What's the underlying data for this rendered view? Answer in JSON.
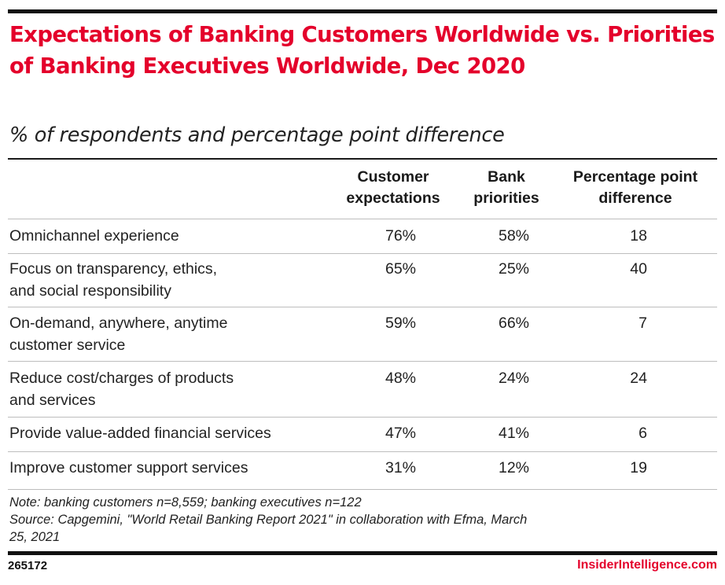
{
  "chart_data": {
    "type": "table",
    "title": "Expectations of Banking Customers Worldwide vs. Priorities of Banking Executives Worldwide, Dec 2020",
    "subtitle": "% of respondents and percentage point difference",
    "columns": [
      "Customer\nexpectations",
      "Bank\npriorities",
      "Percentage point\ndifference"
    ],
    "rows": [
      {
        "label": "Omnichannel experience",
        "values": [
          "76%",
          "58%",
          "18"
        ]
      },
      {
        "label": "Focus on transparency, ethics,\nand social responsibility",
        "values": [
          "65%",
          "25%",
          "40"
        ]
      },
      {
        "label": "On-demand, anywhere, anytime\ncustomer service",
        "values": [
          "59%",
          "66%",
          "7"
        ]
      },
      {
        "label": "Reduce cost/charges of products\nand services",
        "values": [
          "48%",
          "24%",
          "24"
        ]
      },
      {
        "label": "Provide value-added financial services",
        "values": [
          "47%",
          "41%",
          "6"
        ]
      },
      {
        "label": "Improve customer support services",
        "values": [
          "31%",
          "12%",
          "19"
        ]
      }
    ]
  },
  "footer": {
    "note": "Note: banking customers n=8,559; banking executives n=122\nSource: Capgemini, \"World Retail Banking Report 2021\" in collaboration with Efma, March\n25, 2021",
    "chart_id": "265172",
    "brand": "InsiderIntelligence.com"
  },
  "colors": {
    "accent": "#e4002b",
    "rule": "#bdbdbd",
    "text": "#1a1a1a"
  }
}
